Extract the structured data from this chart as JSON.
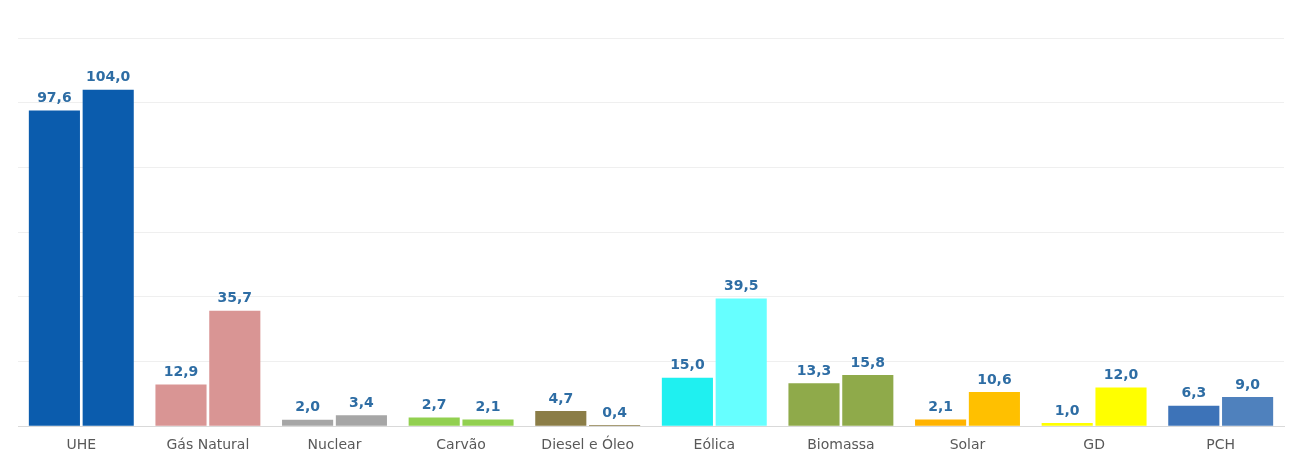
{
  "chart_data": {
    "type": "bar",
    "categories": [
      "UHE",
      "Gás Natural",
      "Nuclear",
      "Carvão",
      "Diesel e Óleo",
      "Eólica",
      "Biomassa",
      "Solar",
      "GD",
      "PCH"
    ],
    "series": [
      {
        "colors": [
          "#0b5cad",
          "#d99594",
          "#a6a6a6",
          "#92d050",
          "#8b7d47",
          "#1ff0f0",
          "#8faa4a",
          "#ffb300",
          "#ffff00",
          "#3d73b8"
        ],
        "values": [
          97.6,
          12.9,
          2.0,
          2.7,
          4.7,
          15.0,
          13.3,
          2.1,
          1.0,
          6.3
        ],
        "value_labels": [
          "97,6",
          "12,9",
          "2,0",
          "2,7",
          "4,7",
          "15,0",
          "13,3",
          "2,1",
          "1,0",
          "6,3"
        ]
      },
      {
        "colors": [
          "#0b5cad",
          "#d99594",
          "#a6a6a6",
          "#92d050",
          "#8b7d47",
          "#66ffff",
          "#8faa4a",
          "#ffc000",
          "#ffff00",
          "#4f81bd"
        ],
        "values": [
          104.0,
          35.7,
          3.4,
          2.1,
          0.4,
          39.5,
          15.8,
          10.6,
          12.0,
          9.0
        ],
        "value_labels": [
          "104,0",
          "35,7",
          "3,4",
          "2,1",
          "0,4",
          "39,5",
          "15,8",
          "10,6",
          "12,0",
          "9,0"
        ]
      }
    ],
    "grid": "y",
    "legend": false
  }
}
